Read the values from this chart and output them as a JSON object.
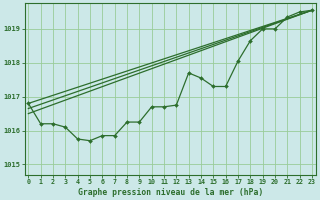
{
  "background_color": "#cce8e8",
  "plot_bg_color": "#cce8e8",
  "grid_color": "#99cc99",
  "line_color": "#2d6e2d",
  "xlabel": "Graphe pression niveau de la mer (hPa)",
  "ylim": [
    1014.7,
    1019.75
  ],
  "yticks": [
    1015,
    1016,
    1017,
    1018,
    1019
  ],
  "xlim": [
    -0.3,
    23.3
  ],
  "xticks": [
    0,
    1,
    2,
    3,
    4,
    5,
    6,
    7,
    8,
    9,
    10,
    11,
    12,
    13,
    14,
    15,
    16,
    17,
    18,
    19,
    20,
    21,
    22,
    23
  ],
  "main_x": [
    0,
    1,
    2,
    3,
    4,
    5,
    6,
    7,
    8,
    9,
    10,
    11,
    12,
    13,
    14,
    15,
    16,
    17,
    18,
    19,
    20,
    21,
    22,
    23
  ],
  "main_y": [
    1016.8,
    1016.2,
    1016.2,
    1016.1,
    1015.75,
    1015.7,
    1015.85,
    1015.85,
    1016.25,
    1016.25,
    1016.7,
    1016.7,
    1016.75,
    1017.7,
    1017.55,
    1017.3,
    1017.3,
    1018.05,
    1018.65,
    1019.0,
    1019.0,
    1019.35,
    1019.5,
    1019.55
  ],
  "trend1_x": [
    0,
    23
  ],
  "trend1_y": [
    1016.8,
    1019.55
  ],
  "trend2_x": [
    0,
    23
  ],
  "trend2_y": [
    1016.65,
    1019.55
  ],
  "trend3_x": [
    0,
    23
  ],
  "trend3_y": [
    1016.5,
    1019.55
  ]
}
